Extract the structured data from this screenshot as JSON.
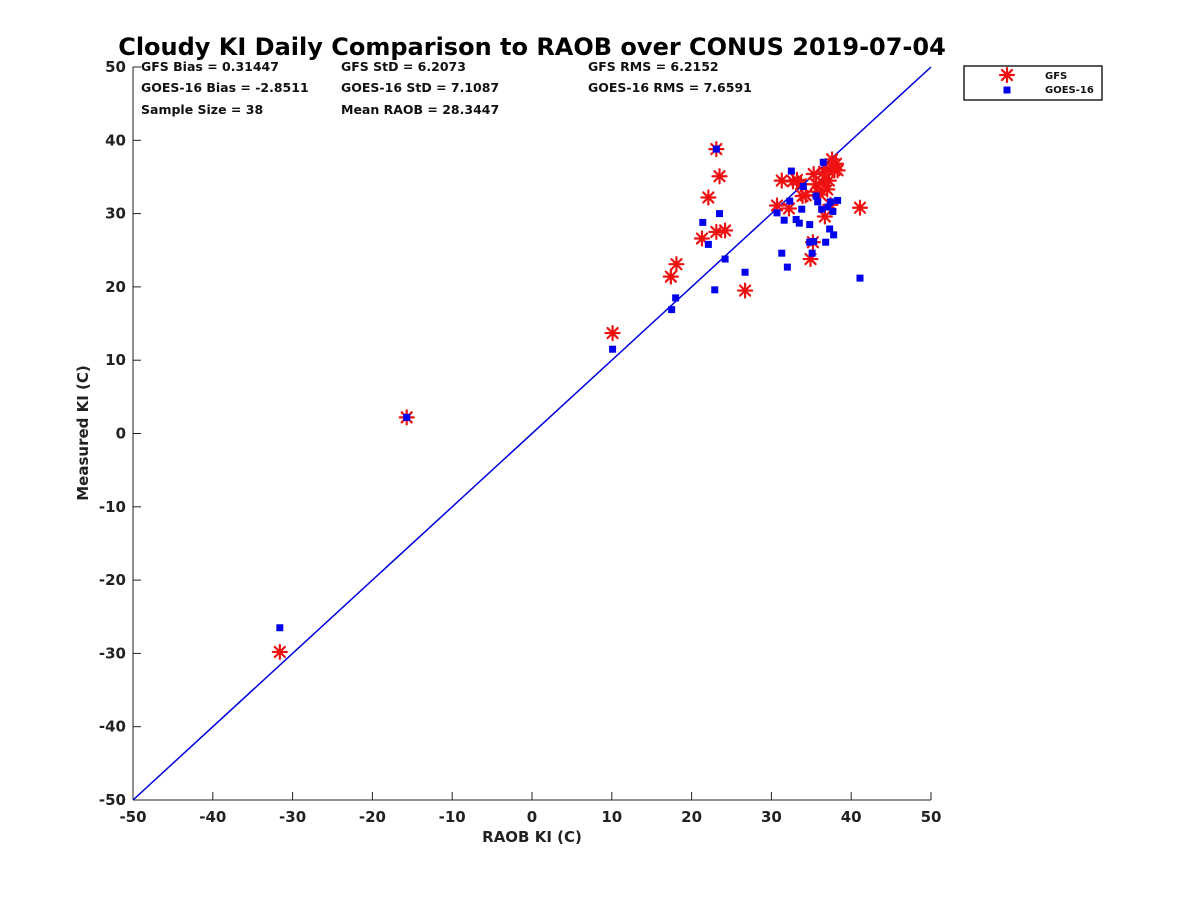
{
  "chart_data": {
    "type": "scatter",
    "title": "Cloudy KI Daily Comparison to RAOB over CONUS 2019-07-04",
    "xlabel": "RAOB KI (C)",
    "ylabel": "Measured KI (C)",
    "xlim": [
      -50,
      50
    ],
    "ylim": [
      -50,
      50
    ],
    "xticks": [
      "-50",
      "-40",
      "-30",
      "-20",
      "-10",
      "0",
      "10",
      "20",
      "30",
      "40",
      "50"
    ],
    "yticks": [
      "50",
      "40",
      "30",
      "20",
      "10",
      "0",
      "-10",
      "-20",
      "-30",
      "-40",
      "-50"
    ],
    "grid": false,
    "legend_position": "top-right (outside plot)",
    "reference_line": {
      "from": [
        -50,
        -50
      ],
      "to": [
        50,
        50
      ],
      "color": "#0000dd"
    },
    "stats": {
      "gfs_bias": "GFS Bias = 0.31447",
      "gfs_std": "GFS StD = 6.2073",
      "gfs_rms": "GFS RMS = 6.2152",
      "goes_bias": "GOES-16 Bias = -2.8511",
      "goes_std": "GOES-16 StD = 7.1087",
      "goes_rms": "GOES-16 RMS = 7.6591",
      "sample_size": "Sample Size = 38",
      "mean_raob": "Mean RAOB = 28.3447"
    },
    "series": [
      {
        "name": "GFS",
        "marker": "asterisk",
        "color": "#ee1111",
        "points": [
          [
            -31.6,
            -29.8
          ],
          [
            -15.7,
            2.2
          ],
          [
            10.1,
            13.7
          ],
          [
            17.4,
            21.4
          ],
          [
            18.1,
            23.1
          ],
          [
            21.3,
            26.6
          ],
          [
            22.1,
            32.2
          ],
          [
            23.1,
            27.5
          ],
          [
            23.1,
            38.8
          ],
          [
            23.5,
            35.1
          ],
          [
            24.2,
            27.7
          ],
          [
            26.7,
            19.5
          ],
          [
            30.7,
            31.1
          ],
          [
            31.3,
            34.5
          ],
          [
            32.2,
            30.7
          ],
          [
            32.7,
            34.4
          ],
          [
            33.2,
            34.6
          ],
          [
            33.7,
            34.0
          ],
          [
            34.3,
            32.5
          ],
          [
            34.9,
            23.8
          ],
          [
            35.2,
            26.1
          ],
          [
            35.3,
            35.4
          ],
          [
            35.6,
            34.0
          ],
          [
            36.1,
            32.6
          ],
          [
            36.4,
            34.2
          ],
          [
            36.6,
            35.7
          ],
          [
            36.7,
            29.6
          ],
          [
            37.0,
            33.3
          ],
          [
            37.2,
            34.5
          ],
          [
            37.4,
            31.2
          ],
          [
            37.6,
            37.4
          ],
          [
            37.9,
            35.9
          ],
          [
            38.1,
            36.8
          ],
          [
            38.3,
            35.9
          ],
          [
            35.8,
            33.0
          ],
          [
            33.9,
            32.4
          ],
          [
            36.9,
            36.1
          ],
          [
            41.1,
            30.8
          ]
        ]
      },
      {
        "name": "GOES-16",
        "marker": "square",
        "color": "#0000ee",
        "points": [
          [
            -31.6,
            -26.5
          ],
          [
            -15.7,
            2.2
          ],
          [
            10.1,
            11.5
          ],
          [
            17.5,
            16.9
          ],
          [
            18.0,
            18.5
          ],
          [
            21.4,
            28.8
          ],
          [
            22.1,
            25.8
          ],
          [
            22.9,
            19.6
          ],
          [
            23.1,
            38.8
          ],
          [
            23.5,
            30.0
          ],
          [
            24.2,
            23.8
          ],
          [
            26.7,
            22.0
          ],
          [
            30.7,
            30.1
          ],
          [
            31.3,
            24.6
          ],
          [
            31.6,
            29.1
          ],
          [
            32.0,
            22.7
          ],
          [
            32.3,
            31.7
          ],
          [
            32.5,
            35.8
          ],
          [
            33.1,
            29.2
          ],
          [
            33.5,
            28.7
          ],
          [
            33.8,
            30.6
          ],
          [
            34.0,
            33.7
          ],
          [
            34.8,
            28.5
          ],
          [
            34.8,
            26.1
          ],
          [
            35.1,
            24.6
          ],
          [
            35.3,
            26.2
          ],
          [
            35.6,
            32.4
          ],
          [
            35.8,
            31.6
          ],
          [
            36.3,
            30.6
          ],
          [
            36.5,
            37.0
          ],
          [
            36.8,
            26.1
          ],
          [
            37.1,
            30.9
          ],
          [
            37.3,
            27.9
          ],
          [
            37.4,
            31.6
          ],
          [
            37.7,
            30.3
          ],
          [
            37.8,
            27.1
          ],
          [
            38.3,
            31.8
          ],
          [
            41.1,
            21.2
          ]
        ]
      }
    ]
  }
}
